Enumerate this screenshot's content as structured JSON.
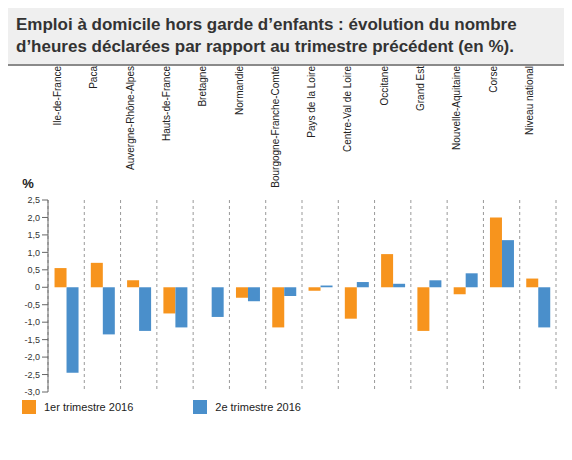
{
  "chart_data": {
    "type": "bar",
    "title": "Emploi à domicile hors garde d’enfants : évolution du nombre d’heures déclarées par rapport au trimestre précédent (en %).",
    "y_label": "%",
    "categories": [
      "Ile-de-France",
      "Paca",
      "Auvergne-Rhône-Alpes",
      "Hauts-de-France",
      "Bretagne",
      "Normandie",
      "Bourgogne-Franche-Comté",
      "Pays de la Loire",
      "Centre-Val de Loire",
      "Occitane",
      "Grand Est",
      "Nouvelle-Aquitaine",
      "Corse",
      "Niveau national"
    ],
    "series": [
      {
        "name": "1er trimestre 2016",
        "color": "#f7941d",
        "values": [
          0.55,
          0.7,
          0.2,
          -0.75,
          0,
          -0.3,
          -1.15,
          -0.1,
          -0.9,
          0.95,
          -1.25,
          -0.2,
          2.0,
          0.25
        ]
      },
      {
        "name": "2e trimestre 2016",
        "color": "#4a8fcb",
        "values": [
          -2.45,
          -1.35,
          -1.25,
          -1.15,
          -0.85,
          -0.4,
          -0.25,
          0.05,
          0.15,
          0.1,
          0.2,
          0.4,
          1.35,
          -1.15
        ]
      }
    ],
    "ylim": [
      -3,
      2.5
    ],
    "yticks": [
      {
        "value": -3,
        "label": "-3,0"
      },
      {
        "value": -2.5,
        "label": "-2,5"
      },
      {
        "value": -2,
        "label": "-2,0"
      },
      {
        "value": -1.5,
        "label": "-1,5"
      },
      {
        "value": -1,
        "label": "-1,0"
      },
      {
        "value": -0.5,
        "label": "-0,5"
      },
      0,
      {
        "value": 0.5,
        "label": "0,5"
      },
      {
        "value": 1,
        "label": "1,0"
      },
      {
        "value": 1.5,
        "label": "1,5"
      },
      {
        "value": 2,
        "label": "2,0"
      },
      {
        "value": 2.5,
        "label": "2,5"
      }
    ],
    "legend": "bottom"
  }
}
